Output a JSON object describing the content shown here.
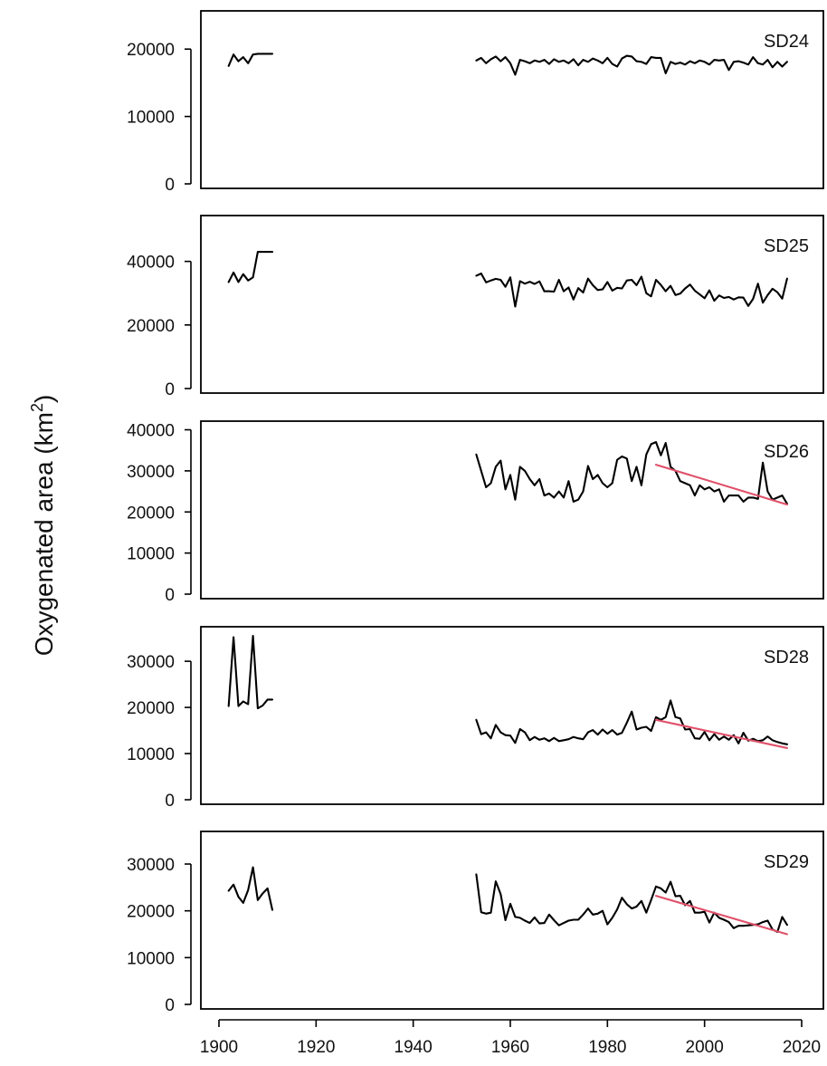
{
  "chart_data": {
    "type": "line",
    "ylabel": "Oxygenated area (km²)",
    "ylabel_main": "Oxygenated area (km",
    "ylabel_sup": "2",
    "ylabel_close": ")",
    "xlim": [
      1900,
      2020
    ],
    "x_ticks": [
      1900,
      1920,
      1940,
      1960,
      1980,
      2000,
      2020
    ],
    "colors": {
      "series": "#000000",
      "trend": "#e0506a"
    },
    "panels": [
      {
        "label": "SD24",
        "ylim": [
          0,
          25000
        ],
        "y_ticks": [
          0,
          10000,
          20000
        ],
        "segments": [
          {
            "x": [
              1902,
              1903,
              1904,
              1905,
              1906,
              1907,
              1908,
              1909,
              1910,
              1911
            ],
            "y": [
              17500,
              19200,
              18200,
              18800,
              17900,
              19200,
              19300,
              19300,
              19300,
              19300
            ]
          },
          {
            "x": [
              1953,
              1954,
              1955,
              1956,
              1957,
              1958,
              1959,
              1960,
              1961,
              1962,
              1963,
              1964,
              1965,
              1966,
              1967,
              1968,
              1969,
              1970,
              1971,
              1972,
              1973,
              1974,
              1975,
              1976,
              1977,
              1978,
              1979,
              1980,
              1981,
              1982,
              1983,
              1984,
              1985,
              1986,
              1987,
              1988,
              1989,
              1990,
              1991,
              1992,
              1993,
              1994,
              1995,
              1996,
              1997,
              1998,
              1999,
              2000,
              2001,
              2002,
              2003,
              2004,
              2005,
              2006,
              2007,
              2008,
              2009,
              2010,
              2011,
              2012,
              2013,
              2014,
              2015,
              2016,
              2017
            ],
            "y": [
              18300,
              18700,
              17900,
              18500,
              18900,
              18200,
              18800,
              17900,
              16200,
              18400,
              18200,
              17900,
              18300,
              18100,
              18400,
              17800,
              18500,
              18100,
              18300,
              17900,
              18500,
              17600,
              18400,
              18100,
              18600,
              18300,
              17900,
              18700,
              17800,
              17400,
              18600,
              19000,
              18900,
              18200,
              18100,
              17800,
              18800,
              18700,
              18700,
              16400,
              18100,
              17800,
              18000,
              17700,
              18200,
              17900,
              18300,
              18100,
              17700,
              18400,
              18300,
              18400,
              16900,
              18100,
              18200,
              18000,
              17700,
              18800,
              17900,
              17700,
              18400,
              17300,
              18100,
              17400,
              18100
            ]
          }
        ],
        "trend": null
      },
      {
        "label": "SD25",
        "ylim": [
          0,
          53000
        ],
        "y_ticks": [
          0,
          20000,
          40000
        ],
        "segments": [
          {
            "x": [
              1902,
              1903,
              1904,
              1905,
              1906,
              1907,
              1908,
              1909,
              1910,
              1911
            ],
            "y": [
              33500,
              36500,
              33500,
              36000,
              34000,
              35000,
              43000,
              43000,
              43000,
              43000
            ]
          },
          {
            "x": [
              1953,
              1954,
              1955,
              1956,
              1957,
              1958,
              1959,
              1960,
              1961,
              1962,
              1963,
              1964,
              1965,
              1966,
              1967,
              1968,
              1969,
              1970,
              1971,
              1972,
              1973,
              1974,
              1975,
              1976,
              1977,
              1978,
              1979,
              1980,
              1981,
              1982,
              1983,
              1984,
              1985,
              1986,
              1987,
              1988,
              1989,
              1990,
              1991,
              1992,
              1993,
              1994,
              1995,
              1996,
              1997,
              1998,
              1999,
              2000,
              2001,
              2002,
              2003,
              2004,
              2005,
              2006,
              2007,
              2008,
              2009,
              2010,
              2011,
              2012,
              2013,
              2014,
              2015,
              2016,
              2017
            ],
            "y": [
              35500,
              36200,
              33400,
              34000,
              34500,
              34200,
              32000,
              35000,
              25800,
              33800,
              33000,
              33600,
              32900,
              33700,
              30600,
              30600,
              30500,
              34200,
              30600,
              31800,
              28000,
              31600,
              30200,
              34600,
              32500,
              31000,
              31200,
              33500,
              30800,
              31700,
              31500,
              34000,
              34200,
              32500,
              35200,
              30000,
              29000,
              34200,
              32600,
              30600,
              32300,
              29400,
              29900,
              31500,
              32700,
              30800,
              29600,
              28400,
              30900,
              27600,
              29300,
              28500,
              28800,
              28000,
              28700,
              28600,
              26000,
              28200,
              33000,
              27000,
              29400,
              31400,
              30300,
              28300,
              34600
            ]
          }
        ],
        "trend": null
      },
      {
        "label": "SD26",
        "ylim": [
          0,
          41000
        ],
        "y_ticks": [
          0,
          10000,
          20000,
          30000,
          40000
        ],
        "segments": [
          {
            "x": [
              1953,
              1954,
              1955,
              1956,
              1957,
              1958,
              1959,
              1960,
              1961,
              1962,
              1963,
              1964,
              1965,
              1966,
              1967,
              1968,
              1969,
              1970,
              1971,
              1972,
              1973,
              1974,
              1975,
              1976,
              1977,
              1978,
              1979,
              1980,
              1981,
              1982,
              1983,
              1984,
              1985,
              1986,
              1987,
              1988,
              1989,
              1990,
              1991,
              1992,
              1993,
              1994,
              1995,
              1996,
              1997,
              1998,
              1999,
              2000,
              2001,
              2002,
              2003,
              2004,
              2005,
              2006,
              2007,
              2008,
              2009,
              2010,
              2011,
              2012,
              2013,
              2014,
              2015,
              2016,
              2017
            ],
            "y": [
              34000,
              30000,
              26000,
              27000,
              31000,
              32500,
              25500,
              29000,
              23000,
              31000,
              30000,
              28000,
              26500,
              28000,
              24000,
              24500,
              23500,
              25000,
              23500,
              27500,
              22500,
              23000,
              25000,
              31200,
              28000,
              29000,
              27000,
              26000,
              27000,
              32700,
              33500,
              33000,
              27500,
              31000,
              26500,
              34000,
              36500,
              37000,
              33800,
              36800,
              31000,
              30000,
              27500,
              27000,
              26500,
              24000,
              26500,
              25500,
              26000,
              25000,
              25500,
              22500,
              24000,
              24000,
              24000,
              22500,
              23500,
              23500,
              23200,
              32000,
              25000,
              23000,
              23500,
              24000,
              22000
            ]
          }
        ],
        "trend": {
          "x": [
            1990,
            2017
          ],
          "y": [
            31500,
            21800
          ]
        }
      },
      {
        "label": "SD28",
        "ylim": [
          0,
          36500
        ],
        "y_ticks": [
          0,
          10000,
          20000,
          30000
        ],
        "segments": [
          {
            "x": [
              1902,
              1903,
              1904,
              1905,
              1906,
              1907,
              1908,
              1909,
              1910,
              1911
            ],
            "y": [
              20300,
              35200,
              20300,
              21300,
              20700,
              35500,
              19800,
              20400,
              21700,
              21700
            ]
          },
          {
            "x": [
              1953,
              1954,
              1955,
              1956,
              1957,
              1958,
              1959,
              1960,
              1961,
              1962,
              1963,
              1964,
              1965,
              1966,
              1967,
              1968,
              1969,
              1970,
              1971,
              1972,
              1973,
              1974,
              1975,
              1976,
              1977,
              1978,
              1979,
              1980,
              1981,
              1982,
              1983,
              1984,
              1985,
              1986,
              1987,
              1988,
              1989,
              1990,
              1991,
              1992,
              1993,
              1994,
              1995,
              1996,
              1997,
              1998,
              1999,
              2000,
              2001,
              2002,
              2003,
              2004,
              2005,
              2006,
              2007,
              2008,
              2009,
              2010,
              2011,
              2012,
              2013,
              2014,
              2015,
              2016,
              2017
            ],
            "y": [
              17300,
              14200,
              14600,
              13300,
              16200,
              14600,
              14000,
              13900,
              12300,
              15300,
              14600,
              12900,
              13600,
              13000,
              13300,
              12700,
              13400,
              12700,
              12900,
              13100,
              13600,
              13300,
              13100,
              14600,
              15100,
              14100,
              15200,
              14300,
              15100,
              14100,
              14500,
              16700,
              19100,
              15200,
              15600,
              15800,
              14900,
              17900,
              17300,
              17900,
              21500,
              17900,
              17600,
              15200,
              15300,
              13300,
              13200,
              14700,
              12900,
              14200,
              13000,
              13700,
              13000,
              14000,
              12200,
              14500,
              12800,
              13200,
              12700,
              12900,
              13700,
              12900,
              12500,
              12200,
              12000
            ]
          }
        ],
        "trend": {
          "x": [
            1990,
            2017
          ],
          "y": [
            17300,
            11200
          ]
        }
      },
      {
        "label": "SD29",
        "ylim": [
          0,
          36000
        ],
        "y_ticks": [
          0,
          10000,
          20000,
          30000
        ],
        "segments": [
          {
            "x": [
              1902,
              1903,
              1904,
              1905,
              1906,
              1907,
              1908,
              1909,
              1910,
              1911
            ],
            "y": [
              24300,
              25600,
              23000,
              21700,
              24400,
              29300,
              22300,
              23700,
              24800,
              20200
            ]
          },
          {
            "x": [
              1953,
              1954,
              1955,
              1956,
              1957,
              1958,
              1959,
              1960,
              1961,
              1962,
              1963,
              1964,
              1965,
              1966,
              1967,
              1968,
              1969,
              1970,
              1971,
              1972,
              1973,
              1974,
              1975,
              1976,
              1977,
              1978,
              1979,
              1980,
              1981,
              1982,
              1983,
              1984,
              1985,
              1986,
              1987,
              1988,
              1989,
              1990,
              1991,
              1992,
              1993,
              1994,
              1995,
              1996,
              1997,
              1998,
              1999,
              2000,
              2001,
              2002,
              2003,
              2004,
              2005,
              2006,
              2007,
              2008,
              2009,
              2010,
              2011,
              2012,
              2013,
              2014,
              2015,
              2016,
              2017
            ],
            "y": [
              27800,
              19700,
              19400,
              19600,
              26300,
              23600,
              18000,
              21500,
              18700,
              18500,
              17900,
              17400,
              18600,
              17300,
              17400,
              19200,
              18000,
              16900,
              17400,
              17900,
              18100,
              18100,
              19200,
              20500,
              19200,
              19400,
              20000,
              17100,
              18500,
              20300,
              22800,
              21400,
              20500,
              20900,
              22100,
              19600,
              22300,
              25200,
              24800,
              23900,
              26200,
              23100,
              23200,
              21200,
              22100,
              19600,
              19600,
              19800,
              17500,
              19600,
              18500,
              18100,
              17600,
              16300,
              16800,
              16800,
              16900,
              17000,
              17100,
              17600,
              17900,
              16000,
              15500,
              18700,
              17000
            ]
          }
        ],
        "trend": {
          "x": [
            1990,
            2017
          ],
          "y": [
            23200,
            15000
          ]
        }
      }
    ]
  }
}
